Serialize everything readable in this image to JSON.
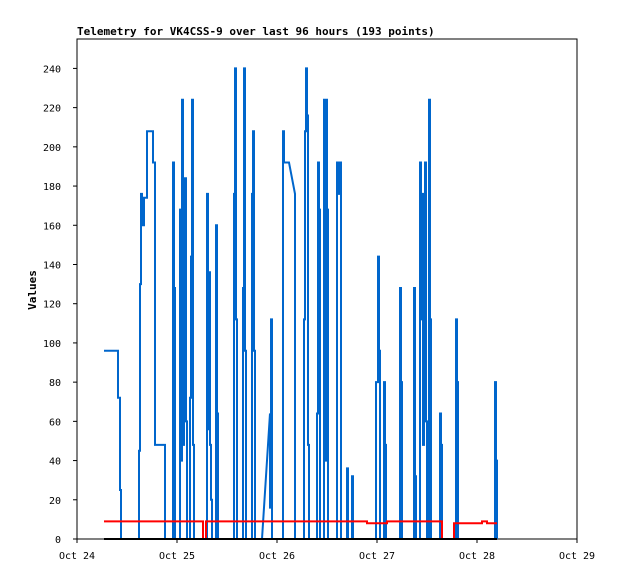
{
  "chart_data": {
    "type": "line",
    "title": "Telemetry for VK4CSS-9 over last 96 hours (193 points)",
    "ylabel": "Values",
    "xlabel": "",
    "x_ticks": [
      "Oct 24",
      "Oct 25",
      "Oct 26",
      "Oct 27",
      "Oct 28",
      "Oct 29"
    ],
    "y_ticks": [
      0,
      20,
      40,
      60,
      80,
      100,
      120,
      140,
      160,
      180,
      200,
      220,
      240
    ],
    "ylim": [
      0,
      255
    ],
    "xlim_days": [
      24,
      29
    ],
    "grid": false,
    "colors": {
      "blue_series": "#0066cc",
      "red_series": "#ff0000",
      "black_series": "#000000"
    },
    "series": [
      {
        "color": "#0066cc",
        "points": [
          [
            24.27,
            96
          ],
          [
            24.41,
            96
          ],
          [
            24.41,
            72
          ],
          [
            24.43,
            72
          ],
          [
            24.43,
            25
          ],
          [
            24.44,
            25
          ],
          [
            24.44,
            0
          ],
          [
            24.62,
            0
          ],
          [
            24.62,
            45
          ],
          [
            24.63,
            45
          ],
          [
            24.63,
            130
          ],
          [
            24.64,
            130
          ],
          [
            24.64,
            176
          ],
          [
            24.65,
            176
          ],
          [
            24.65,
            160
          ],
          [
            24.67,
            160
          ],
          [
            24.67,
            174
          ],
          [
            24.7,
            174
          ],
          [
            24.7,
            208
          ],
          [
            24.76,
            208
          ],
          [
            24.76,
            192
          ],
          [
            24.78,
            192
          ],
          [
            24.78,
            48
          ],
          [
            24.88,
            48
          ],
          [
            24.88,
            0
          ],
          [
            24.96,
            0
          ],
          [
            24.96,
            192
          ],
          [
            24.97,
            192
          ],
          [
            24.97,
            128
          ],
          [
            24.98,
            128
          ],
          [
            24.98,
            0
          ],
          [
            25.03,
            0
          ],
          [
            25.03,
            168
          ],
          [
            25.04,
            168
          ],
          [
            25.04,
            40
          ],
          [
            25.05,
            40
          ],
          [
            25.05,
            224
          ],
          [
            25.06,
            224
          ],
          [
            25.06,
            48
          ],
          [
            25.07,
            48
          ],
          [
            25.07,
            112
          ],
          [
            25.08,
            112
          ],
          [
            25.08,
            184
          ],
          [
            25.09,
            184
          ],
          [
            25.09,
            60
          ],
          [
            25.1,
            60
          ],
          [
            25.1,
            0
          ],
          [
            25.13,
            0
          ],
          [
            25.13,
            72
          ],
          [
            25.14,
            72
          ],
          [
            25.14,
            144
          ],
          [
            25.15,
            144
          ],
          [
            25.15,
            224
          ],
          [
            25.16,
            224
          ],
          [
            25.16,
            48
          ],
          [
            25.17,
            48
          ],
          [
            25.17,
            0
          ],
          [
            25.3,
            0
          ],
          [
            25.3,
            176
          ],
          [
            25.31,
            176
          ],
          [
            25.31,
            56
          ],
          [
            25.32,
            56
          ],
          [
            25.32,
            136
          ],
          [
            25.33,
            136
          ],
          [
            25.33,
            48
          ],
          [
            25.34,
            48
          ],
          [
            25.34,
            20
          ],
          [
            25.35,
            20
          ],
          [
            25.35,
            0
          ],
          [
            25.39,
            0
          ],
          [
            25.39,
            160
          ],
          [
            25.4,
            160
          ],
          [
            25.4,
            64
          ],
          [
            25.41,
            64
          ],
          [
            25.41,
            0
          ],
          [
            25.57,
            0
          ],
          [
            25.57,
            176
          ],
          [
            25.58,
            176
          ],
          [
            25.58,
            240
          ],
          [
            25.59,
            240
          ],
          [
            25.59,
            112
          ],
          [
            25.6,
            112
          ],
          [
            25.6,
            0
          ],
          [
            25.66,
            0
          ],
          [
            25.66,
            128
          ],
          [
            25.67,
            128
          ],
          [
            25.67,
            240
          ],
          [
            25.68,
            240
          ],
          [
            25.68,
            96
          ],
          [
            25.69,
            96
          ],
          [
            25.69,
            0
          ],
          [
            25.75,
            0
          ],
          [
            25.75,
            176
          ],
          [
            25.76,
            176
          ],
          [
            25.76,
            208
          ],
          [
            25.77,
            208
          ],
          [
            25.77,
            96
          ],
          [
            25.78,
            96
          ],
          [
            25.78,
            0
          ],
          [
            25.85,
            0
          ],
          [
            25.93,
            64
          ],
          [
            25.93,
            16
          ],
          [
            25.94,
            16
          ],
          [
            25.94,
            112
          ],
          [
            25.95,
            112
          ],
          [
            25.95,
            0
          ],
          [
            26.06,
            0
          ],
          [
            26.06,
            208
          ],
          [
            26.07,
            208
          ],
          [
            26.07,
            192
          ],
          [
            26.12,
            192
          ],
          [
            26.18,
            176
          ],
          [
            26.18,
            0
          ],
          [
            26.27,
            0
          ],
          [
            26.27,
            112
          ],
          [
            26.28,
            112
          ],
          [
            26.28,
            208
          ],
          [
            26.29,
            208
          ],
          [
            26.29,
            240
          ],
          [
            26.3,
            240
          ],
          [
            26.3,
            216
          ],
          [
            26.31,
            216
          ],
          [
            26.31,
            48
          ],
          [
            26.32,
            48
          ],
          [
            26.32,
            0
          ],
          [
            26.4,
            0
          ],
          [
            26.4,
            64
          ],
          [
            26.41,
            64
          ],
          [
            26.41,
            192
          ],
          [
            26.42,
            192
          ],
          [
            26.42,
            168
          ],
          [
            26.43,
            168
          ],
          [
            26.43,
            0
          ],
          [
            26.47,
            0
          ],
          [
            26.47,
            224
          ],
          [
            26.48,
            224
          ],
          [
            26.48,
            40
          ],
          [
            26.49,
            40
          ],
          [
            26.49,
            224
          ],
          [
            26.5,
            224
          ],
          [
            26.5,
            168
          ],
          [
            26.51,
            168
          ],
          [
            26.51,
            0
          ],
          [
            26.6,
            0
          ],
          [
            26.6,
            192
          ],
          [
            26.62,
            192
          ],
          [
            26.62,
            176
          ],
          [
            26.63,
            176
          ],
          [
            26.63,
            192
          ],
          [
            26.64,
            192
          ],
          [
            26.64,
            0
          ],
          [
            26.7,
            0
          ],
          [
            26.7,
            36
          ],
          [
            26.71,
            36
          ],
          [
            26.71,
            0
          ],
          [
            26.75,
            0
          ],
          [
            26.75,
            32
          ],
          [
            26.76,
            32
          ],
          [
            26.76,
            0
          ],
          [
            26.99,
            0
          ],
          [
            26.99,
            80
          ],
          [
            27.01,
            80
          ],
          [
            27.01,
            144
          ],
          [
            27.02,
            144
          ],
          [
            27.02,
            96
          ],
          [
            27.03,
            96
          ],
          [
            27.03,
            0
          ],
          [
            27.07,
            0
          ],
          [
            27.07,
            80
          ],
          [
            27.08,
            80
          ],
          [
            27.08,
            48
          ],
          [
            27.09,
            48
          ],
          [
            27.09,
            0
          ],
          [
            27.23,
            0
          ],
          [
            27.23,
            128
          ],
          [
            27.24,
            128
          ],
          [
            27.24,
            80
          ],
          [
            27.25,
            80
          ],
          [
            27.25,
            0
          ],
          [
            27.37,
            0
          ],
          [
            27.37,
            128
          ],
          [
            27.38,
            128
          ],
          [
            27.38,
            32
          ],
          [
            27.39,
            32
          ],
          [
            27.39,
            0
          ],
          [
            27.43,
            0
          ],
          [
            27.43,
            192
          ],
          [
            27.44,
            192
          ],
          [
            27.44,
            112
          ],
          [
            27.45,
            112
          ],
          [
            27.45,
            176
          ],
          [
            27.46,
            176
          ],
          [
            27.46,
            48
          ],
          [
            27.47,
            48
          ],
          [
            27.47,
            144
          ],
          [
            27.48,
            144
          ],
          [
            27.48,
            192
          ],
          [
            27.49,
            192
          ],
          [
            27.49,
            60
          ],
          [
            27.5,
            60
          ],
          [
            27.5,
            0
          ],
          [
            27.52,
            0
          ],
          [
            27.52,
            224
          ],
          [
            27.53,
            224
          ],
          [
            27.53,
            112
          ],
          [
            27.54,
            112
          ],
          [
            27.54,
            0
          ],
          [
            27.63,
            0
          ],
          [
            27.63,
            64
          ],
          [
            27.64,
            64
          ],
          [
            27.64,
            48
          ],
          [
            27.65,
            48
          ],
          [
            27.65,
            0
          ],
          [
            27.79,
            0
          ],
          [
            27.79,
            112
          ],
          [
            27.8,
            112
          ],
          [
            27.8,
            80
          ],
          [
            27.81,
            80
          ],
          [
            27.81,
            0
          ],
          [
            28.18,
            0
          ],
          [
            28.18,
            80
          ],
          [
            28.19,
            80
          ],
          [
            28.19,
            40
          ],
          [
            28.2,
            40
          ],
          [
            28.2,
            0
          ]
        ]
      },
      {
        "color": "#ff0000",
        "points": [
          [
            24.27,
            9
          ],
          [
            25.26,
            9
          ],
          [
            25.26,
            0
          ],
          [
            25.29,
            0
          ],
          [
            25.29,
            9
          ],
          [
            26.9,
            9
          ],
          [
            26.9,
            8
          ],
          [
            27.1,
            8
          ],
          [
            27.1,
            9
          ],
          [
            27.65,
            9
          ],
          [
            27.65,
            0
          ],
          [
            27.77,
            0
          ],
          [
            27.77,
            8
          ],
          [
            28.05,
            8
          ],
          [
            28.05,
            9
          ],
          [
            28.1,
            9
          ],
          [
            28.1,
            8
          ],
          [
            28.2,
            8
          ]
        ]
      },
      {
        "color": "#000000",
        "points": [
          [
            24.27,
            0
          ],
          [
            28.2,
            0
          ]
        ]
      }
    ]
  }
}
